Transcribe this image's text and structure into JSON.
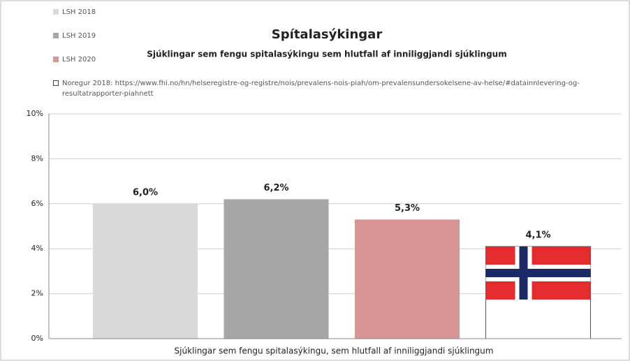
{
  "chart_data": {
    "type": "bar",
    "title": "Spítalasýkingar",
    "subtitle": "Sjúklingar sem fengu spitalasýkingu sem hlutfall af inniliggjandi sjúklingum",
    "categories": [
      "Sjúklingar sem fengu spitalasýkingu, sem hlutfall af inniliggjandi sjúklingum"
    ],
    "series": [
      {
        "name": "LSH 2018",
        "color": "#d9d9d9",
        "values": [
          6.0
        ],
        "value_labels": [
          "6,0%"
        ]
      },
      {
        "name": "LSH 2019",
        "color": "#a6a6a6",
        "values": [
          6.2
        ],
        "value_labels": [
          "6,2%"
        ]
      },
      {
        "name": "LSH 2020",
        "color": "#d99594",
        "values": [
          5.3
        ],
        "value_labels": [
          "5,3%"
        ]
      },
      {
        "name": "Noregur 2018:  https://www.fhi.no/hn/helseregistre-og-registre/nois/prevalens-nois-piah/om-prevalensundersokelsene-av-helse/#datainnlevering-og-resultatrapporter-piahnett",
        "color": "#ffffff",
        "values": [
          4.1
        ],
        "value_labels": [
          "4,1%"
        ]
      }
    ],
    "ylim": [
      0,
      10
    ],
    "yticks": [
      {
        "value": 0,
        "label": "0%"
      },
      {
        "value": 2,
        "label": "2%"
      },
      {
        "value": 4,
        "label": "4%"
      },
      {
        "value": 6,
        "label": "6%"
      },
      {
        "value": 8,
        "label": "8%"
      },
      {
        "value": 10,
        "label": "10%"
      }
    ],
    "grid": true
  }
}
